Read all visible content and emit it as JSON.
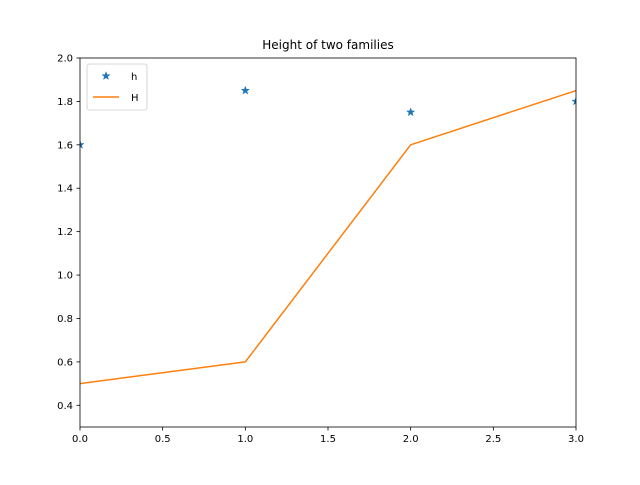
{
  "chart_data": {
    "type": "line",
    "title": "Height of two families",
    "xlabel": "",
    "ylabel": "",
    "xlim": [
      0,
      3
    ],
    "ylim": [
      0.3,
      2.0
    ],
    "xticks": [
      "0.0",
      "0.5",
      "1.0",
      "1.5",
      "2.0",
      "2.5",
      "3.0"
    ],
    "yticks": [
      "0.4",
      "0.6",
      "0.8",
      "1.0",
      "1.2",
      "1.4",
      "1.6",
      "1.8",
      "2.0"
    ],
    "grid": false,
    "legend_position": "top-left",
    "series": [
      {
        "name": "h",
        "style": "markers",
        "marker": "star",
        "color": "#1f77b4",
        "x": [
          0,
          1,
          2,
          3
        ],
        "values": [
          1.6,
          1.85,
          1.75,
          1.8
        ]
      },
      {
        "name": "H",
        "style": "line",
        "color": "#ff7f0e",
        "x": [
          0,
          1,
          2,
          3
        ],
        "values": [
          0.5,
          0.6,
          1.6,
          1.85
        ]
      }
    ]
  }
}
